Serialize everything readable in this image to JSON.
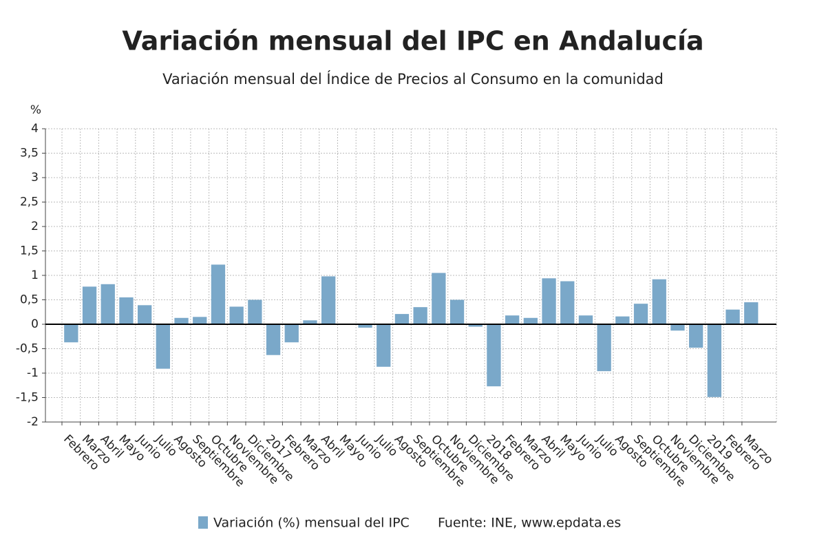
{
  "chart_data": {
    "type": "bar",
    "title": "Variación mensual del IPC en Andalucía",
    "subtitle": "Variación mensual del Índice de Precios al Consumo en la comunidad",
    "y_label": "%",
    "source": "Fuente: INE, www.epdata.es",
    "categories": [
      "Febrero",
      "Marzo",
      "Abril",
      "Mayo",
      "Junio",
      "Julio",
      "Agosto",
      "Septiembre",
      "Octubre",
      "Noviembre",
      "Diciembre",
      "2017",
      "Febrero",
      "Marzo",
      "Abril",
      "Mayo",
      "Junio",
      "Julio",
      "Agosto",
      "Septiembre",
      "Octubre",
      "Noviembre",
      "Diciembre",
      "2018",
      "Febrero",
      "Marzo",
      "Abril",
      "Mayo",
      "Junio",
      "Julio",
      "Agosto",
      "Septiembre",
      "Octubre",
      "Noviembre",
      "Diciembre",
      "2019",
      "Febrero",
      "Marzo"
    ],
    "series": [
      {
        "name": "Variación (%) mensual del IPC",
        "color": "#7aa8c9",
        "values": [
          -0.37,
          0.77,
          0.82,
          0.55,
          0.39,
          -0.91,
          0.13,
          0.15,
          1.22,
          0.36,
          0.5,
          -0.63,
          -0.37,
          0.08,
          0.98,
          0,
          -0.07,
          -0.87,
          0.21,
          0.35,
          1.05,
          0.5,
          -0.05,
          -1.27,
          0.18,
          0.13,
          0.94,
          0.88,
          0.18,
          -0.96,
          0.16,
          0.42,
          0.92,
          -0.13,
          -0.48,
          -1.49,
          0.3,
          0.45
        ]
      }
    ],
    "ylim": [
      -2,
      4
    ],
    "yticks": [
      -2,
      {
        "value": -1.5,
        "label": "-1,5"
      },
      -1,
      {
        "value": -0.5,
        "label": "-0,5"
      },
      0,
      {
        "value": 0.5,
        "label": "0,5"
      },
      1,
      {
        "value": 1.5,
        "label": "1,5"
      },
      2,
      {
        "value": 2.5,
        "label": "2,5"
      },
      3,
      {
        "value": 3.5,
        "label": "3,5"
      },
      4
    ],
    "grid": true
  }
}
